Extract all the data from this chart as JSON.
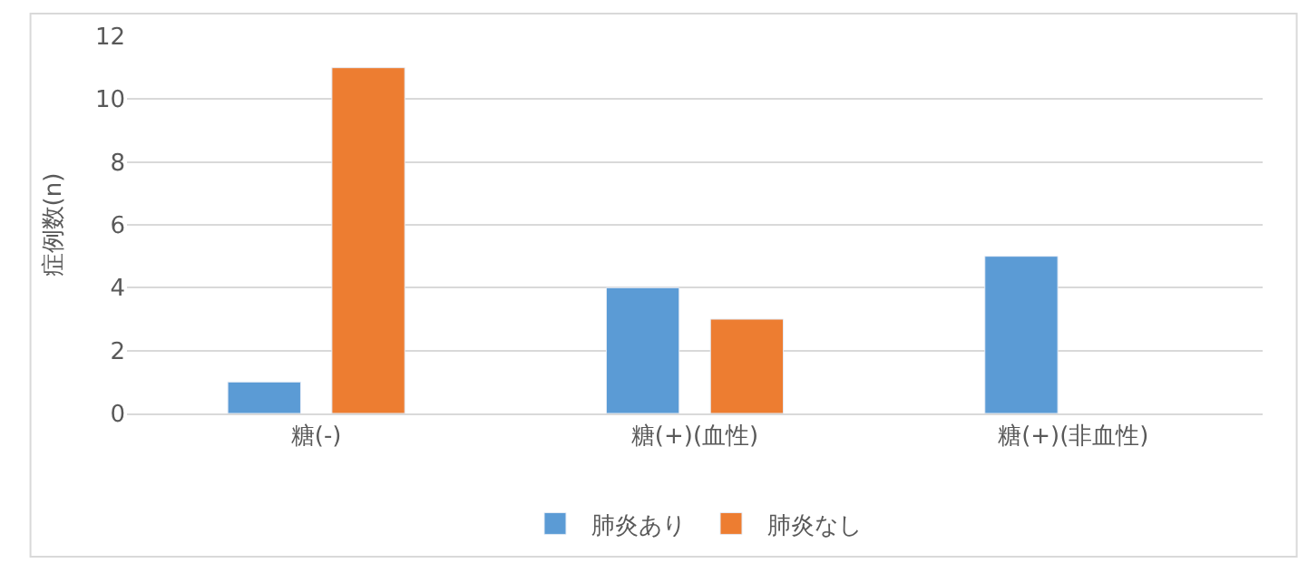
{
  "chart_data": {
    "type": "bar",
    "ylabel": "症例数(n)",
    "categories": [
      "糖(-)",
      "糖(+)(血性)",
      "糖(+)(非血性)"
    ],
    "series": [
      {
        "name": "肺炎あり",
        "color": "#5b9bd5",
        "values": [
          1,
          4,
          5
        ]
      },
      {
        "name": "肺炎なし",
        "color": "#ed7d31",
        "values": [
          11,
          3,
          null
        ]
      }
    ],
    "ylim": [
      0,
      12
    ],
    "yticks": [
      0,
      2,
      4,
      6,
      8,
      10,
      12
    ],
    "grid": "y",
    "legend": "bottom"
  }
}
